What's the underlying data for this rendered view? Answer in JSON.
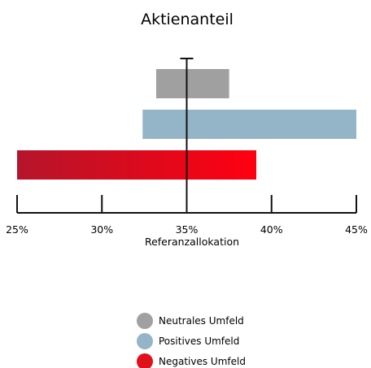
{
  "chart_data": {
    "type": "bar",
    "orientation": "horizontal",
    "title": "Aktienanteil",
    "xlabel": "Referanzallokation",
    "ylabel": "",
    "xlim": [
      25,
      45
    ],
    "reference_value": 35,
    "x_ticks": [
      "25%",
      "30%",
      "35%",
      "40%",
      "45%"
    ],
    "x_tick_values": [
      25,
      30,
      35,
      40,
      45
    ],
    "series": [
      {
        "name": "Neutrales Umfeld",
        "range": [
          33.2,
          37.5
        ],
        "color": "#a0a0a0"
      },
      {
        "name": "Positives Umfeld",
        "range": [
          32.4,
          45.0
        ],
        "color": "#94b4c8"
      },
      {
        "name": "Negatives Umfeld",
        "range": [
          25.0,
          39.1
        ],
        "color_start": "#b5152b",
        "color_end": "#ff0010"
      }
    ],
    "legend": {
      "position": "bottom-center",
      "entries": [
        "Neutrales Umfeld",
        "Positives Umfeld",
        "Negatives Umfeld"
      ]
    },
    "grid": false
  }
}
